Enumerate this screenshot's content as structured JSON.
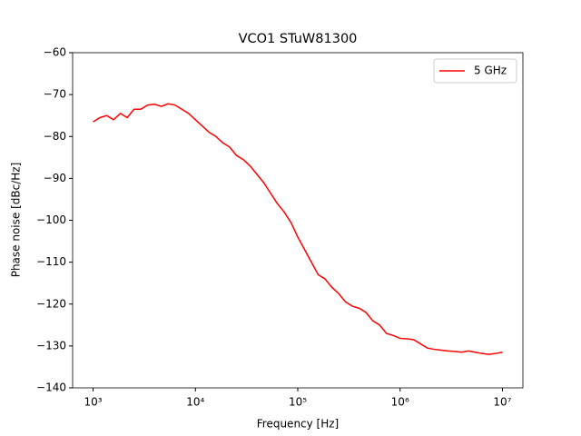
{
  "chart_data": {
    "type": "line",
    "title": "VCO1 STuW81300",
    "x_label": "Frequency [Hz]",
    "y_label": "Phase noise [dBc/Hz]",
    "x_scale": "log",
    "legend": "upper right",
    "xlim": [
      631,
      15849000
    ],
    "ylim": [
      -140,
      -60
    ],
    "xticks": [
      {
        "value": 1000,
        "label": "10³"
      },
      {
        "value": 10000,
        "label": "10⁴"
      },
      {
        "value": 100000,
        "label": "10⁵"
      },
      {
        "value": 1000000,
        "label": "10⁶"
      },
      {
        "value": 10000000,
        "label": "10⁷"
      }
    ],
    "yticks": [
      {
        "value": -140,
        "label": "−140"
      },
      {
        "value": -130,
        "label": "−130"
      },
      {
        "value": -120,
        "label": "−120"
      },
      {
        "value": -110,
        "label": "−110"
      },
      {
        "value": -100,
        "label": "−100"
      },
      {
        "value": -90,
        "label": "−90"
      },
      {
        "value": -80,
        "label": "−80"
      },
      {
        "value": -70,
        "label": "−70"
      },
      {
        "value": -60,
        "label": "−60"
      }
    ],
    "x": [
      1000,
      1166,
      1359,
      1585,
      1848,
      2154,
      2512,
      2929,
      3415,
      3981,
      4642,
      5412,
      6310,
      7356,
      8577,
      10000,
      11660,
      13590,
      15850,
      18480,
      21540,
      25120,
      29290,
      34150,
      39810,
      46420,
      54120,
      63100,
      73560,
      85770,
      100000,
      116600,
      135900,
      158500,
      184800,
      215400,
      251200,
      292900,
      341500,
      398100,
      464200,
      541200,
      631000,
      735600,
      857700,
      1000000,
      1166000,
      1359000,
      1585000,
      1848000,
      2154000,
      2512000,
      2929000,
      3415000,
      3981000,
      4642000,
      5412000,
      6310000,
      7356000,
      8577000,
      10000000
    ],
    "series": [
      {
        "name": "5 GHz",
        "color": "#ff0000",
        "values": [
          -76.5,
          -75.5,
          -75,
          -76,
          -74.5,
          -75.5,
          -73.5,
          -73.5,
          -72.5,
          -72.3,
          -72.8,
          -72.2,
          -72.5,
          -73.5,
          -74.5,
          -76,
          -77.5,
          -79,
          -80,
          -81.5,
          -82.5,
          -84.5,
          -85.5,
          -87,
          -89,
          -91,
          -93.5,
          -96,
          -98,
          -100.5,
          -104,
          -107,
          -110,
          -113,
          -114,
          -116,
          -117.5,
          -119.5,
          -120.5,
          -121,
          -122,
          -124,
          -125,
          -127,
          -127.5,
          -128.2,
          -128.3,
          -128.5,
          -129.5,
          -130.5,
          -130.8,
          -131,
          -131.2,
          -131.3,
          -131.5,
          -131.2,
          -131.5,
          -131.8,
          -132,
          -131.8,
          -131.5
        ]
      }
    ]
  }
}
